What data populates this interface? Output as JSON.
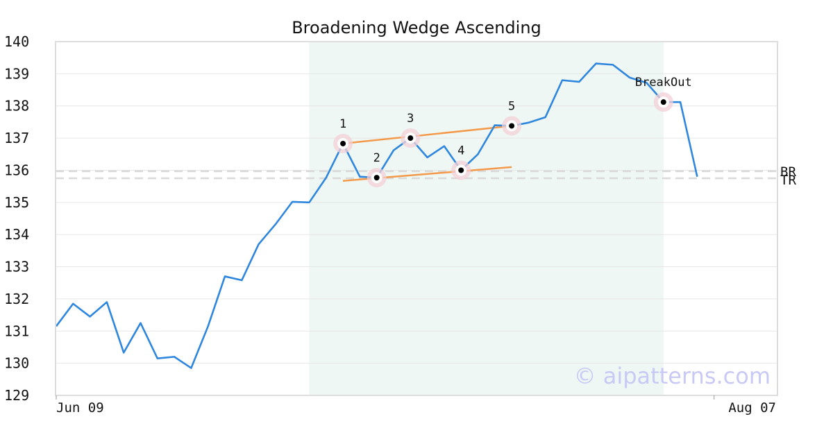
{
  "chart_data": {
    "type": "line",
    "title": "Broadening Wedge Ascending",
    "watermark": "© aipatterns.com",
    "xlabel": "",
    "ylabel": "",
    "ylim": [
      129,
      140
    ],
    "yticks": [
      129,
      130,
      131,
      132,
      133,
      134,
      135,
      136,
      137,
      138,
      139,
      140
    ],
    "x_tick_labels": [
      {
        "index": 0,
        "label": "Jun 09"
      },
      {
        "index": 39,
        "label": "Aug 07"
      }
    ],
    "grid": true,
    "series": [
      {
        "color": "#2e86de",
        "values": [
          131.15,
          131.85,
          131.45,
          131.9,
          130.33,
          131.25,
          130.15,
          130.2,
          129.85,
          131.15,
          132.7,
          132.58,
          133.7,
          134.32,
          135.02,
          135.0,
          135.77,
          136.83,
          135.8,
          135.77,
          136.62,
          137.0,
          136.4,
          136.75,
          136.0,
          136.5,
          137.4,
          137.38,
          137.48,
          137.65,
          138.8,
          138.75,
          139.32,
          139.28,
          138.88,
          138.72,
          138.12,
          138.12,
          135.8
        ]
      }
    ],
    "highlight_region": {
      "from_index": 15,
      "to_index": 36,
      "color": "#eef7f3"
    },
    "pattern_points": [
      {
        "label": "1",
        "index": 17,
        "value": 136.83
      },
      {
        "label": "2",
        "index": 19,
        "value": 135.77
      },
      {
        "label": "3",
        "index": 21,
        "value": 137.0
      },
      {
        "label": "4",
        "index": 24,
        "value": 136.0
      },
      {
        "label": "5",
        "index": 27,
        "value": 137.38
      },
      {
        "label": "BreakOut",
        "index": 36,
        "value": 138.12
      }
    ],
    "trend_lines": [
      {
        "from_index": 17,
        "from_value": 136.83,
        "to_index": 27,
        "to_value": 137.38,
        "color": "#f4994a"
      },
      {
        "from_index": 17,
        "from_value": 135.67,
        "to_index": 27,
        "to_value": 136.1,
        "color": "#f4994a"
      }
    ],
    "reference_lines": [
      {
        "label": "BR",
        "value": 135.97
      },
      {
        "label": "TR",
        "value": 135.75
      }
    ]
  }
}
